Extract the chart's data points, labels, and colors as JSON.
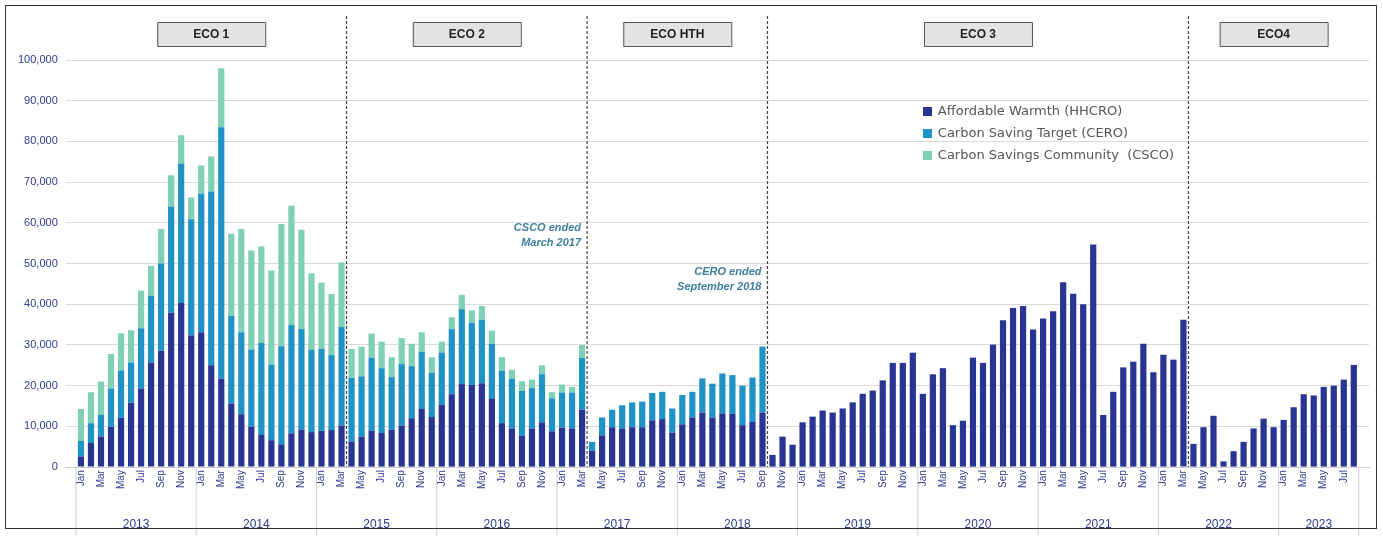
{
  "chart_data": {
    "type": "bar",
    "stacked": true,
    "grid": "y",
    "legend": "top right",
    "x": [
      "2013-01",
      "2013-02",
      "2013-03",
      "2013-04",
      "2013-05",
      "2013-06",
      "2013-07",
      "2013-08",
      "2013-09",
      "2013-10",
      "2013-11",
      "2013-12",
      "2014-01",
      "2014-02",
      "2014-03",
      "2014-04",
      "2014-05",
      "2014-06",
      "2014-07",
      "2014-08",
      "2014-09",
      "2014-10",
      "2014-11",
      "2014-12",
      "2015-01",
      "2015-02",
      "2015-03",
      "2015-04",
      "2015-05",
      "2015-06",
      "2015-07",
      "2015-08",
      "2015-09",
      "2015-10",
      "2015-11",
      "2015-12",
      "2016-01",
      "2016-02",
      "2016-03",
      "2016-04",
      "2016-05",
      "2016-06",
      "2016-07",
      "2016-08",
      "2016-09",
      "2016-10",
      "2016-11",
      "2016-12",
      "2017-01",
      "2017-02",
      "2017-03",
      "2017-04",
      "2017-05",
      "2017-06",
      "2017-07",
      "2017-08",
      "2017-09",
      "2017-10",
      "2017-11",
      "2017-12",
      "2018-01",
      "2018-02",
      "2018-03",
      "2018-04",
      "2018-05",
      "2018-06",
      "2018-07",
      "2018-08",
      "2018-09",
      "2018-10",
      "2018-11",
      "2018-12",
      "2019-01",
      "2019-02",
      "2019-03",
      "2019-04",
      "2019-05",
      "2019-06",
      "2019-07",
      "2019-08",
      "2019-09",
      "2019-10",
      "2019-11",
      "2019-12",
      "2020-01",
      "2020-02",
      "2020-03",
      "2020-04",
      "2020-05",
      "2020-06",
      "2020-07",
      "2020-08",
      "2020-09",
      "2020-10",
      "2020-11",
      "2020-12",
      "2021-01",
      "2021-02",
      "2021-03",
      "2021-04",
      "2021-05",
      "2021-06",
      "2021-07",
      "2021-08",
      "2021-09",
      "2021-10",
      "2021-11",
      "2021-12",
      "2022-01",
      "2022-02",
      "2022-03",
      "2022-04",
      "2022-05",
      "2022-06",
      "2022-07",
      "2022-08",
      "2022-09",
      "2022-10",
      "2022-11",
      "2022-12",
      "2023-01",
      "2023-02",
      "2023-03",
      "2023-04",
      "2023-05",
      "2023-06",
      "2023-07",
      "2023-08"
    ],
    "xlim": [
      "2012-12-16",
      "2023-08-16"
    ],
    "xticks": [
      {
        "value": "2013-01",
        "label": "Jan"
      },
      {
        "value": "2013-03",
        "label": "Mar"
      },
      {
        "value": "2013-05",
        "label": "May"
      },
      {
        "value": "2013-07",
        "label": "Jul"
      },
      {
        "value": "2013-09",
        "label": "Sep"
      },
      {
        "value": "2013-11",
        "label": "Nov"
      },
      {
        "value": "2014-01",
        "label": "Jan"
      },
      {
        "value": "2014-03",
        "label": "Mar"
      },
      {
        "value": "2014-05",
        "label": "May"
      },
      {
        "value": "2014-07",
        "label": "Jul"
      },
      {
        "value": "2014-09",
        "label": "Sep"
      },
      {
        "value": "2014-11",
        "label": "Nov"
      },
      {
        "value": "2015-01",
        "label": "Jan"
      },
      {
        "value": "2015-03",
        "label": "Mar"
      },
      {
        "value": "2015-05",
        "label": "May"
      },
      {
        "value": "2015-07",
        "label": "Jul"
      },
      {
        "value": "2015-09",
        "label": "Sep"
      },
      {
        "value": "2015-11",
        "label": "Nov"
      },
      {
        "value": "2016-01",
        "label": "Jan"
      },
      {
        "value": "2016-03",
        "label": "Mar"
      },
      {
        "value": "2016-05",
        "label": "May"
      },
      {
        "value": "2016-07",
        "label": "Jul"
      },
      {
        "value": "2016-09",
        "label": "Sep"
      },
      {
        "value": "2016-11",
        "label": "Nov"
      },
      {
        "value": "2017-01",
        "label": "Jan"
      },
      {
        "value": "2017-03",
        "label": "Mar"
      },
      {
        "value": "2017-05",
        "label": "May"
      },
      {
        "value": "2017-07",
        "label": "Jul"
      },
      {
        "value": "2017-09",
        "label": "Sep"
      },
      {
        "value": "2017-11",
        "label": "Nov"
      },
      {
        "value": "2018-01",
        "label": "Jan"
      },
      {
        "value": "2018-03",
        "label": "Mar"
      },
      {
        "value": "2018-05",
        "label": "May"
      },
      {
        "value": "2018-07",
        "label": "Jul"
      },
      {
        "value": "2018-09",
        "label": "Sep"
      },
      {
        "value": "2018-11",
        "label": "Nov"
      },
      {
        "value": "2019-01",
        "label": "Jan"
      },
      {
        "value": "2019-03",
        "label": "Mar"
      },
      {
        "value": "2019-05",
        "label": "May"
      },
      {
        "value": "2019-07",
        "label": "Jul"
      },
      {
        "value": "2019-09",
        "label": "Sep"
      },
      {
        "value": "2019-11",
        "label": "Nov"
      },
      {
        "value": "2020-01",
        "label": "Jan"
      },
      {
        "value": "2020-03",
        "label": "Mar"
      },
      {
        "value": "2020-05",
        "label": "May"
      },
      {
        "value": "2020-07",
        "label": "Jul"
      },
      {
        "value": "2020-09",
        "label": "Sep"
      },
      {
        "value": "2020-11",
        "label": "Nov"
      },
      {
        "value": "2021-01",
        "label": "Jan"
      },
      {
        "value": "2021-03",
        "label": "Mar"
      },
      {
        "value": "2021-05",
        "label": "May"
      },
      {
        "value": "2021-07",
        "label": "Jul"
      },
      {
        "value": "2021-09",
        "label": "Sep"
      },
      {
        "value": "2021-11",
        "label": "Nov"
      },
      {
        "value": "2022-01",
        "label": "Jan"
      },
      {
        "value": "2022-03",
        "label": "Mar"
      },
      {
        "value": "2022-05",
        "label": "May"
      },
      {
        "value": "2022-07",
        "label": "Jul"
      },
      {
        "value": "2022-09",
        "label": "Sep"
      },
      {
        "value": "2022-11",
        "label": "Nov"
      },
      {
        "value": "2023-01",
        "label": "Jan"
      },
      {
        "value": "2023-03",
        "label": "Mar"
      },
      {
        "value": "2023-05",
        "label": "May"
      },
      {
        "value": "2023-07",
        "label": "Jul"
      }
    ],
    "ylim": [
      0,
      100000
    ],
    "yticks": [
      0,
      {
        "value": 10000,
        "label": "10,000"
      },
      {
        "value": 20000,
        "label": "20,000"
      },
      {
        "value": 30000,
        "label": "30,000"
      },
      {
        "value": 40000,
        "label": "40,000"
      },
      {
        "value": 50000,
        "label": "50,000"
      },
      {
        "value": 60000,
        "label": "60,000"
      },
      {
        "value": 70000,
        "label": "70,000"
      },
      {
        "value": 80000,
        "label": "80,000"
      },
      {
        "value": 90000,
        "label": "90,000"
      },
      {
        "value": 100000,
        "label": "100,000"
      }
    ],
    "series": [
      {
        "name": "Affordable Warmth (HHCRO)",
        "color": "#283593",
        "values": [
          2600,
          5900,
          7500,
          9900,
          12100,
          15800,
          19300,
          25700,
          28600,
          37900,
          40300,
          32300,
          33100,
          25000,
          21700,
          15600,
          13000,
          9900,
          7900,
          6600,
          5600,
          8300,
          9200,
          8600,
          8900,
          9100,
          10200,
          6300,
          7500,
          9000,
          8400,
          9200,
          10200,
          12000,
          14300,
          12300,
          15300,
          17900,
          20400,
          20200,
          20600,
          16900,
          10800,
          9500,
          7700,
          9500,
          11000,
          8800,
          9700,
          9500,
          14100,
          4000,
          7800,
          9800,
          9500,
          9800,
          9800,
          11500,
          11800,
          8500,
          10500,
          12200,
          13400,
          12200,
          13200,
          13100,
          10300,
          11100,
          13400,
          3000,
          7500,
          5500,
          11000,
          12400,
          13900,
          13400,
          14400,
          15900,
          18000,
          18800,
          21300,
          25600,
          25600,
          28100,
          18000,
          22800,
          24300,
          10300,
          11400,
          26900,
          25600,
          30100,
          36100,
          39100,
          39600,
          33800,
          36500,
          38300,
          45400,
          42600,
          40000,
          54700,
          12800,
          18500,
          24500,
          25900,
          30300,
          23300,
          27600,
          26400,
          36200,
          5700,
          9800,
          12600,
          1400,
          3900,
          6200,
          9500,
          11900,
          9800,
          11600,
          14700,
          17900,
          17600,
          19700,
          20000,
          21500,
          25100
        ]
      },
      {
        "name": "Carbon Saving Target (CERO)",
        "color": "#1f93c6",
        "values": [
          3800,
          4900,
          5300,
          9400,
          11600,
          9900,
          14800,
          16400,
          21400,
          26100,
          34300,
          28600,
          34100,
          42700,
          61800,
          21600,
          20100,
          19000,
          22600,
          18600,
          24100,
          26600,
          24700,
          20200,
          20200,
          18400,
          24200,
          15600,
          14800,
          17900,
          15900,
          12900,
          15100,
          12800,
          14000,
          10900,
          12800,
          16000,
          18400,
          15200,
          15600,
          13400,
          12900,
          12200,
          11000,
          9900,
          11800,
          8100,
          8600,
          8800,
          12700,
          2200,
          4400,
          4300,
          5700,
          6100,
          6300,
          6700,
          6700,
          5900,
          7200,
          6300,
          8400,
          8300,
          9800,
          9500,
          9700,
          10900,
          16200,
          null,
          null,
          null,
          null,
          null,
          null,
          null,
          null,
          null,
          null,
          null,
          null,
          null,
          null,
          null,
          null,
          null,
          null,
          null,
          null,
          null,
          null,
          null,
          null,
          null,
          null,
          null,
          null,
          null,
          null,
          null,
          null,
          null,
          null,
          null,
          null,
          null,
          null,
          null,
          null,
          null,
          null,
          null,
          null,
          null,
          null,
          null,
          null,
          null,
          null,
          null,
          null,
          null,
          null,
          null,
          null,
          null,
          null,
          null
        ]
      },
      {
        "name": "Carbon Savings Community  (CSCO)",
        "color": "#7fd0b7",
        "values": [
          7900,
          7600,
          8200,
          8500,
          9200,
          7900,
          9200,
          7300,
          8500,
          7700,
          6900,
          5300,
          6900,
          8600,
          14500,
          20100,
          25400,
          24300,
          23700,
          23100,
          30000,
          29300,
          24400,
          18800,
          16200,
          15000,
          15900,
          7100,
          7300,
          5900,
          6500,
          4900,
          6400,
          5500,
          4800,
          3800,
          2700,
          2900,
          3500,
          3100,
          3400,
          3200,
          3300,
          2200,
          2400,
          2100,
          2200,
          1500,
          2000,
          1400,
          3200,
          null,
          null,
          null,
          null,
          null,
          null,
          null,
          null,
          null,
          null,
          null,
          null,
          null,
          null,
          null,
          null,
          null,
          null,
          null,
          null,
          null,
          null,
          null,
          null,
          null,
          null,
          null,
          null,
          null,
          null,
          null,
          null,
          null,
          null,
          null,
          null,
          null,
          null,
          null,
          null,
          null,
          null,
          null,
          null,
          null,
          null,
          null,
          null,
          null,
          null,
          null,
          null,
          null,
          null,
          null,
          null,
          null,
          null,
          null,
          null,
          null,
          null,
          null,
          null,
          null,
          null,
          null,
          null,
          null,
          null,
          null,
          null,
          null,
          null,
          null,
          null,
          null
        ]
      }
    ],
    "ref_lines": [
      {
        "axis": "x",
        "value": "2015-03-16",
        "label": null,
        "line_style": "dashed"
      },
      {
        "axis": "x",
        "value": "2017-03-16",
        "label": "CSCO ended March 2017",
        "line_style": "dashed"
      },
      {
        "axis": "x",
        "value": "2018-09-16",
        "label": "CERO ended September 2018",
        "line_style": "dashed"
      },
      {
        "axis": "x",
        "value": "2022-03-16",
        "label": null,
        "line_style": "dashed"
      }
    ],
    "annotations": [
      "ECO 1",
      "ECO 2",
      "ECO HTH",
      "ECO 3",
      "ECO4",
      "2013",
      "2014",
      "2015",
      "2016",
      "2017",
      "2018",
      "2019",
      "2020",
      "2021",
      "2022",
      "2023"
    ]
  }
}
